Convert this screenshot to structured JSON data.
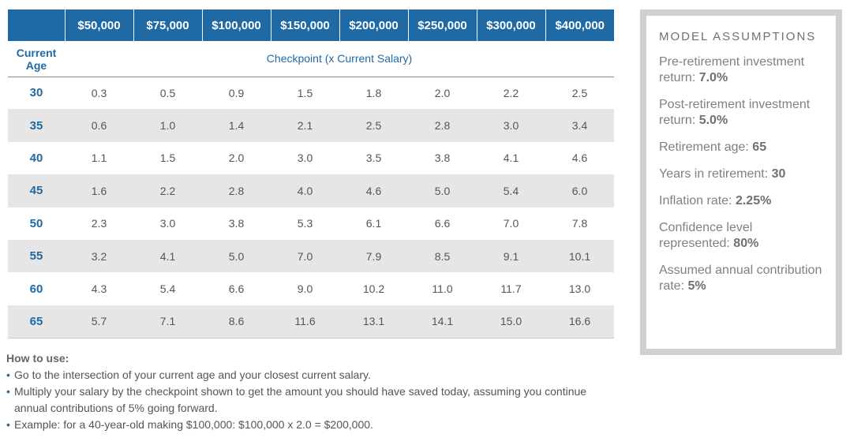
{
  "table": {
    "salaries": [
      "$50,000",
      "$75,000",
      "$100,000",
      "$150,000",
      "$200,000",
      "$250,000",
      "$300,000",
      "$400,000"
    ],
    "age_header_line1": "Current",
    "age_header_line2": "Age",
    "checkpoint_header": "Checkpoint (x Current Salary)",
    "rows": [
      {
        "age": "30",
        "values": [
          "0.3",
          "0.5",
          "0.9",
          "1.5",
          "1.8",
          "2.0",
          "2.2",
          "2.5"
        ]
      },
      {
        "age": "35",
        "values": [
          "0.6",
          "1.0",
          "1.4",
          "2.1",
          "2.5",
          "2.8",
          "3.0",
          "3.4"
        ]
      },
      {
        "age": "40",
        "values": [
          "1.1",
          "1.5",
          "2.0",
          "3.0",
          "3.5",
          "3.8",
          "4.1",
          "4.6"
        ]
      },
      {
        "age": "45",
        "values": [
          "1.6",
          "2.2",
          "2.8",
          "4.0",
          "4.6",
          "5.0",
          "5.4",
          "6.0"
        ]
      },
      {
        "age": "50",
        "values": [
          "2.3",
          "3.0",
          "3.8",
          "5.3",
          "6.1",
          "6.6",
          "7.0",
          "7.8"
        ]
      },
      {
        "age": "55",
        "values": [
          "3.2",
          "4.1",
          "5.0",
          "7.0",
          "7.9",
          "8.5",
          "9.1",
          "10.1"
        ]
      },
      {
        "age": "60",
        "values": [
          "4.3",
          "5.4",
          "6.6",
          "9.0",
          "10.2",
          "11.0",
          "11.7",
          "13.0"
        ]
      },
      {
        "age": "65",
        "values": [
          "5.7",
          "7.1",
          "8.6",
          "11.6",
          "13.1",
          "14.1",
          "15.0",
          "16.6"
        ]
      }
    ]
  },
  "how_to": {
    "title": "How to use:",
    "bullets": [
      "Go to the intersection of your current age and your closest current salary.",
      "Multiply your salary by the checkpoint shown to get the amount you should have saved today, assuming you continue annual contributions of 5% going forward.",
      "Example: for a 40-year-old making $100,000: $100,000 x 2.0 = $200,000."
    ]
  },
  "assumptions": {
    "title": "MODEL ASSUMPTIONS",
    "items": [
      {
        "label": "Pre-retirement investment return:",
        "value": "7.0%"
      },
      {
        "label": "Post-retirement investment return:",
        "value": "5.0%"
      },
      {
        "label": "Retirement age:",
        "value": "65"
      },
      {
        "label": "Years in retirement:",
        "value": "30"
      },
      {
        "label": "Inflation rate:",
        "value": "2.25%"
      },
      {
        "label": "Confidence level represented:",
        "value": "80%"
      },
      {
        "label": "Assumed annual contribution rate:",
        "value": "5%"
      }
    ]
  },
  "colors": {
    "header_blue": "#1f6aa5",
    "row_stripe": "#e6e6e6",
    "box_border": "#d0d0d0"
  }
}
